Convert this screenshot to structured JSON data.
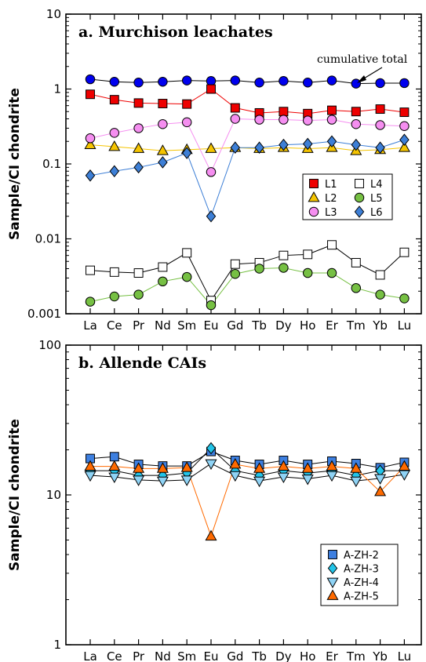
{
  "chart_data": [
    {
      "type": "line",
      "title": "a. Murchison leachates",
      "ylabel": "Sample/CI chondrite",
      "yscale": "log",
      "ylim": [
        0.001,
        10
      ],
      "yticks": [
        "0.001",
        "0.01",
        "0.1",
        "1",
        "10"
      ],
      "categories": [
        "La",
        "Ce",
        "Pr",
        "Nd",
        "Sm",
        "Eu",
        "Gd",
        "Tb",
        "Dy",
        "Ho",
        "Er",
        "Tm",
        "Yb",
        "Lu"
      ],
      "legend_placement": "right",
      "annotation": "cumulative total",
      "series": [
        {
          "name": "",
          "marker": "circle",
          "color": "#0000ee",
          "line": "#000000",
          "values": [
            1.35,
            1.25,
            1.22,
            1.25,
            1.3,
            1.28,
            1.3,
            1.22,
            1.28,
            1.22,
            1.3,
            1.18,
            1.2,
            1.2
          ]
        },
        {
          "name": "L1",
          "marker": "square",
          "color": "#ee0000",
          "line": "#ee0000",
          "values": [
            0.85,
            0.72,
            0.65,
            0.64,
            0.63,
            1.0,
            0.56,
            0.48,
            0.5,
            0.47,
            0.52,
            0.5,
            0.54,
            0.49
          ]
        },
        {
          "name": "L2",
          "marker": "triangle",
          "color": "#f5c400",
          "line": "#f5c400",
          "values": [
            0.18,
            0.17,
            0.16,
            0.15,
            0.155,
            0.16,
            0.165,
            0.16,
            0.165,
            0.16,
            0.165,
            0.15,
            0.155,
            0.165
          ]
        },
        {
          "name": "L3",
          "marker": "circle",
          "color": "#f58ef0",
          "line": "#f58ef0",
          "values": [
            0.22,
            0.26,
            0.3,
            0.34,
            0.36,
            0.078,
            0.4,
            0.39,
            0.39,
            0.38,
            0.39,
            0.34,
            0.33,
            0.32
          ]
        },
        {
          "name": "L4",
          "marker": "square-open",
          "color": "#ffffff",
          "line": "#000000",
          "values": [
            0.0038,
            0.0036,
            0.0035,
            0.0042,
            0.0065,
            0.0015,
            0.0046,
            0.0048,
            0.006,
            0.0062,
            0.0083,
            0.0048,
            0.0033,
            0.0066
          ]
        },
        {
          "name": "L5",
          "marker": "circle",
          "color": "#76c043",
          "line": "#76c043",
          "values": [
            0.00145,
            0.0017,
            0.0018,
            0.0027,
            0.0031,
            0.0013,
            0.0034,
            0.004,
            0.0041,
            0.0035,
            0.0035,
            0.0022,
            0.0018,
            0.0016
          ]
        },
        {
          "name": "L6",
          "marker": "diamond",
          "color": "#3d7fd6",
          "line": "#3d7fd6",
          "values": [
            0.07,
            0.08,
            0.09,
            0.105,
            0.14,
            0.02,
            0.165,
            0.165,
            0.18,
            0.185,
            0.2,
            0.18,
            0.165,
            0.21
          ]
        }
      ]
    },
    {
      "type": "line",
      "title": "b. Allende CAIs",
      "ylabel": "Sample/CI chondrite",
      "yscale": "log",
      "ylim": [
        1,
        100
      ],
      "yticks": [
        "1",
        "10",
        "100"
      ],
      "categories": [
        "La",
        "Ce",
        "Pr",
        "Nd",
        "Sm",
        "Eu",
        "Gd",
        "Tb",
        "Dy",
        "Ho",
        "Er",
        "Tm",
        "Yb",
        "Lu"
      ],
      "legend_placement": "bottom-right",
      "series": [
        {
          "name": "A-ZH-2",
          "marker": "square",
          "color": "#3d7fe0",
          "line": "#000000",
          "values": [
            17.5,
            18.0,
            16.0,
            15.6,
            15.6,
            19.5,
            17.0,
            16.0,
            17.0,
            16.0,
            16.8,
            16.2,
            15.2,
            16.5
          ]
        },
        {
          "name": "A-ZH-3",
          "marker": "diamond",
          "color": "#22c4e8",
          "line": "#000000",
          "values": [
            14.5,
            14.5,
            13.5,
            13.5,
            14.0,
            20.5,
            14.5,
            13.5,
            14.5,
            14.0,
            14.5,
            13.5,
            14.5,
            14.5
          ]
        },
        {
          "name": "A-ZH-4",
          "marker": "triangle-down",
          "color": "#8fd3f5",
          "line": "#000000",
          "values": [
            13.5,
            13.2,
            12.6,
            12.4,
            12.6,
            16.2,
            13.5,
            12.4,
            13.2,
            12.8,
            13.5,
            12.4,
            12.9,
            13.7
          ]
        },
        {
          "name": "A-ZH-5",
          "marker": "triangle",
          "color": "#ff6a00",
          "line": "#ff6a00",
          "values": [
            15.5,
            15.5,
            15.0,
            15.0,
            15.2,
            5.3,
            16.0,
            15.0,
            15.5,
            15.0,
            15.5,
            15.0,
            10.5,
            15.5
          ]
        }
      ]
    }
  ]
}
